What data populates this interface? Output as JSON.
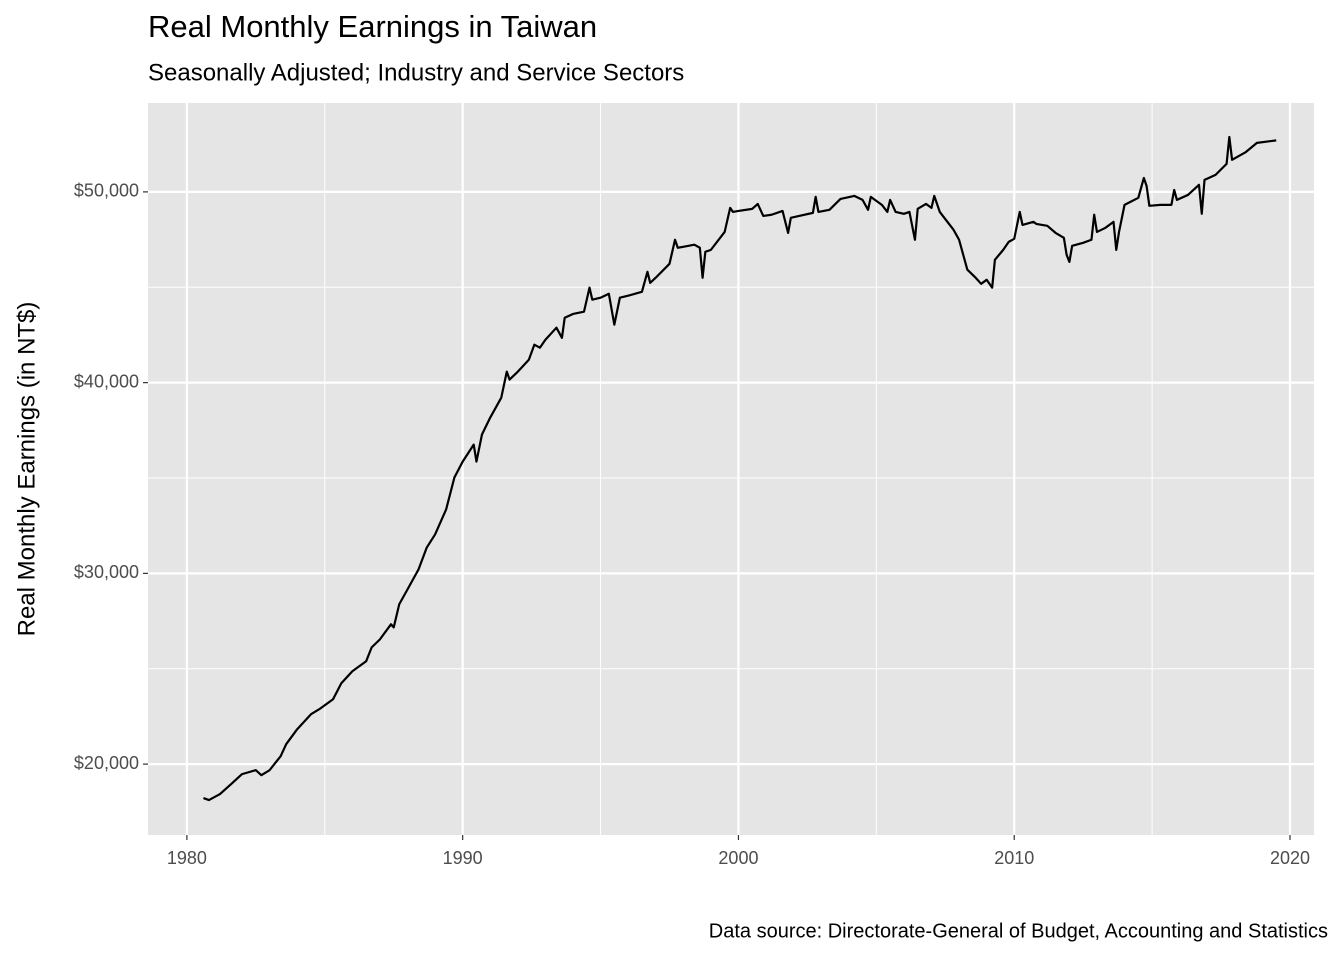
{
  "chart_data": {
    "type": "line",
    "title": "Real Monthly Earnings in Taiwan",
    "subtitle": "Seasonally Adjusted; Industry and Service Sectors",
    "ylabel": "Real Monthly Earnings (in NT$)",
    "caption": "Data source: Directorate-General of Budget, Accounting and Statistics",
    "color": "#000000",
    "grid": true,
    "xlim": [
      1978.59,
      2020.87
    ],
    "ylim": [
      16283,
      54660
    ],
    "xticks": [
      1980,
      1990,
      2000,
      2010,
      2020
    ],
    "minor_xticks": [
      1985,
      1995,
      2005,
      2015
    ],
    "yticks": [
      {
        "value": 20000,
        "label": "$20,000"
      },
      {
        "value": 30000,
        "label": "$30,000"
      },
      {
        "value": 40000,
        "label": "$40,000"
      },
      {
        "value": 50000,
        "label": "$50,000"
      }
    ],
    "minor_yticks": [
      25000,
      35000,
      45000
    ],
    "x": [
      1980.6,
      1980.8,
      1981.2,
      1981.6,
      1982.0,
      1982.5,
      1982.7,
      1983.0,
      1983.4,
      1983.6,
      1984.0,
      1984.5,
      1984.8,
      1985.3,
      1985.6,
      1986.0,
      1986.5,
      1986.7,
      1987.0,
      1987.4,
      1987.5,
      1987.7,
      1988.0,
      1988.4,
      1988.7,
      1989.0,
      1989.4,
      1989.7,
      1990.0,
      1990.4,
      1990.5,
      1990.7,
      1991.0,
      1991.4,
      1991.6,
      1991.7,
      1992.0,
      1992.4,
      1992.6,
      1992.8,
      1993.0,
      1993.4,
      1993.6,
      1993.7,
      1994.0,
      1994.4,
      1994.6,
      1994.7,
      1995.0,
      1995.3,
      1995.5,
      1995.7,
      1996.0,
      1996.5,
      1996.7,
      1996.8,
      1997.0,
      1997.5,
      1997.7,
      1997.8,
      1998.0,
      1998.4,
      1998.6,
      1998.7,
      1998.8,
      1999.0,
      1999.5,
      1999.7,
      1999.8,
      2000.0,
      2000.5,
      2000.7,
      2000.9,
      2001.2,
      2001.6,
      2001.8,
      2001.9,
      2002.2,
      2002.7,
      2002.8,
      2002.9,
      2003.3,
      2003.7,
      2004.2,
      2004.5,
      2004.7,
      2004.8,
      2005.2,
      2005.4,
      2005.5,
      2005.7,
      2006.0,
      2006.2,
      2006.4,
      2006.5,
      2006.8,
      2007.0,
      2007.1,
      2007.3,
      2007.8,
      2008.0,
      2008.3,
      2008.6,
      2008.8,
      2009.0,
      2009.2,
      2009.3,
      2009.6,
      2009.8,
      2010.0,
      2010.2,
      2010.3,
      2010.7,
      2010.8,
      2011.2,
      2011.5,
      2011.8,
      2011.9,
      2012.0,
      2012.1,
      2012.5,
      2012.8,
      2012.9,
      2013.0,
      2013.3,
      2013.6,
      2013.7,
      2013.8,
      2014.0,
      2014.5,
      2014.7,
      2014.8,
      2014.9,
      2015.3,
      2015.7,
      2015.8,
      2015.9,
      2016.3,
      2016.7,
      2016.8,
      2016.9,
      2017.3,
      2017.7,
      2017.8,
      2017.9,
      2018.4,
      2018.8,
      2019.5
    ],
    "values": [
      18220,
      18114,
      18428,
      18950,
      19475,
      19684,
      19422,
      19684,
      20417,
      21045,
      21830,
      22615,
      22877,
      23400,
      24240,
      24870,
      25390,
      26120,
      26540,
      27330,
      27170,
      28380,
      29160,
      30210,
      31360,
      32040,
      33350,
      35025,
      35860,
      36750,
      35860,
      37280,
      38170,
      39210,
      40575,
      40160,
      40575,
      41200,
      41990,
      41830,
      42250,
      42880,
      42350,
      43400,
      43600,
      43720,
      44980,
      44350,
      44450,
      44660,
      43040,
      44450,
      44560,
      44760,
      45810,
      45230,
      45500,
      46230,
      47490,
      47070,
      47120,
      47230,
      47070,
      45500,
      46860,
      46960,
      47900,
      49160,
      48950,
      49000,
      49110,
      49370,
      48740,
      48800,
      49000,
      47850,
      48640,
      48740,
      48900,
      49740,
      48950,
      49060,
      49630,
      49790,
      49580,
      49060,
      49740,
      49320,
      48950,
      49580,
      48950,
      48850,
      48950,
      47490,
      49110,
      49370,
      49160,
      49790,
      48950,
      48010,
      47490,
      45920,
      45500,
      45180,
      45390,
      44980,
      46440,
      46960,
      47380,
      47540,
      48950,
      48270,
      48430,
      48320,
      48220,
      47850,
      47590,
      46700,
      46330,
      47170,
      47330,
      47490,
      48800,
      47900,
      48110,
      48430,
      46960,
      47900,
      49320,
      49690,
      50730,
      50310,
      49270,
      49320,
      49320,
      50100,
      49580,
      49840,
      50370,
      48850,
      50630,
      50890,
      51470,
      52880,
      51680,
      52090,
      52570,
      52700
    ]
  }
}
